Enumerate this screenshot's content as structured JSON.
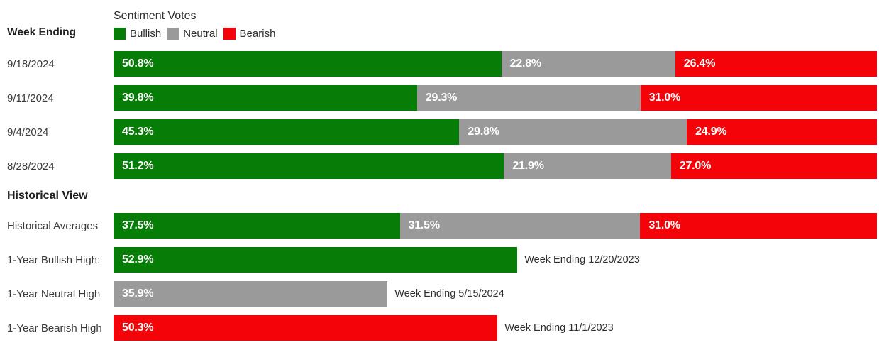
{
  "colors": {
    "bullish": "#067d06",
    "neutral": "#9a9a9a",
    "bearish": "#f40308",
    "value_label_text": "#ffffff"
  },
  "header": {
    "week_ending_label": "Week Ending",
    "chart_title": "Sentiment Votes",
    "legend": {
      "bullish": "Bullish",
      "neutral": "Neutral",
      "bearish": "Bearish"
    }
  },
  "weekly_rows": [
    {
      "date": "9/18/2024",
      "bullish": {
        "value": 50.8,
        "text": "50.8%"
      },
      "neutral": {
        "value": 22.8,
        "text": "22.8%"
      },
      "bearish": {
        "value": 26.4,
        "text": "26.4%"
      }
    },
    {
      "date": "9/11/2024",
      "bullish": {
        "value": 39.8,
        "text": "39.8%"
      },
      "neutral": {
        "value": 29.3,
        "text": "29.3%"
      },
      "bearish": {
        "value": 31.0,
        "text": "31.0%"
      }
    },
    {
      "date": "9/4/2024",
      "bullish": {
        "value": 45.3,
        "text": "45.3%"
      },
      "neutral": {
        "value": 29.8,
        "text": "29.8%"
      },
      "bearish": {
        "value": 24.9,
        "text": "24.9%"
      }
    },
    {
      "date": "8/28/2024",
      "bullish": {
        "value": 51.2,
        "text": "51.2%"
      },
      "neutral": {
        "value": 21.9,
        "text": "21.9%"
      },
      "bearish": {
        "value": 27.0,
        "text": "27.0%"
      }
    }
  ],
  "historical": {
    "section_title": "Historical View",
    "averages": {
      "label": "Historical Averages",
      "bullish": {
        "value": 37.5,
        "text": "37.5%"
      },
      "neutral": {
        "value": 31.5,
        "text": "31.5%"
      },
      "bearish": {
        "value": 31.0,
        "text": "31.0%"
      }
    },
    "highs": [
      {
        "label": "1-Year Bullish High:",
        "series": "bullish",
        "value": 52.9,
        "text": "52.9%",
        "annotation": "Week Ending 12/20/2023"
      },
      {
        "label": "1-Year Neutral High",
        "series": "neutral",
        "value": 35.9,
        "text": "35.9%",
        "annotation": "Week Ending 5/15/2024"
      },
      {
        "label": "1-Year Bearish High",
        "series": "bearish",
        "value": 50.3,
        "text": "50.3%",
        "annotation": "Week Ending 11/1/2023"
      }
    ]
  },
  "chart_data": {
    "type": "bar",
    "subtype": "horizontal-stacked",
    "title": "Sentiment Votes",
    "row_header": "Week Ending",
    "legend_entries": [
      "Bullish",
      "Neutral",
      "Bearish"
    ],
    "legend_position": "top",
    "grid": false,
    "xlim": [
      0,
      100
    ],
    "value_format": "percent",
    "categories": [
      "9/18/2024",
      "9/11/2024",
      "9/4/2024",
      "8/28/2024",
      "Historical Averages"
    ],
    "series": [
      {
        "name": "Bullish",
        "color": "#067d06",
        "values": [
          50.8,
          39.8,
          45.3,
          51.2,
          37.5
        ]
      },
      {
        "name": "Neutral",
        "color": "#9a9a9a",
        "values": [
          22.8,
          29.3,
          29.8,
          21.9,
          31.5
        ]
      },
      {
        "name": "Bearish",
        "color": "#f40308",
        "values": [
          26.4,
          31.0,
          24.9,
          27.0,
          31.0
        ]
      }
    ],
    "section_heading": "Historical View",
    "extremes": [
      {
        "label": "1-Year Bullish High:",
        "series": "Bullish",
        "value": 52.9,
        "annotation": "Week Ending 12/20/2023"
      },
      {
        "label": "1-Year Neutral High",
        "series": "Neutral",
        "value": 35.9,
        "annotation": "Week Ending 5/15/2024"
      },
      {
        "label": "1-Year Bearish High",
        "series": "Bearish",
        "value": 50.3,
        "annotation": "Week Ending 11/1/2023"
      }
    ]
  }
}
